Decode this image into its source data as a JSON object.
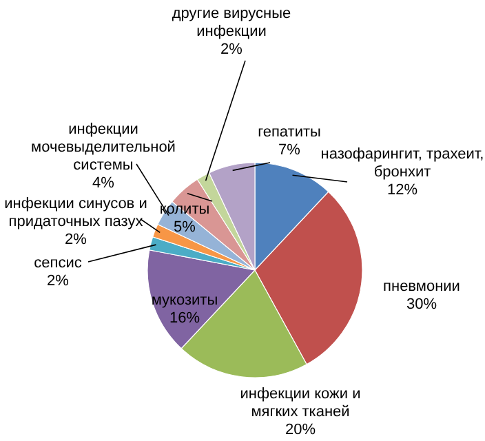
{
  "chart_data": {
    "type": "pie",
    "categories": [
      "назофарингит, трахеит, бронхит",
      "пневмонии",
      "инфекции кожи и мягких тканей",
      "мукозиты",
      "сепсис",
      "инфекции синусов и придаточных пазух",
      "инфекции мочевыделительной системы",
      "колиты",
      "другие вирусные инфекции",
      "гепатиты"
    ],
    "values": [
      12,
      30,
      20,
      16,
      2,
      2,
      4,
      5,
      2,
      7
    ],
    "value_labels": [
      "12%",
      "30%",
      "20%",
      "16%",
      "2%",
      "2%",
      "4%",
      "5%",
      "2%",
      "7%"
    ],
    "colors": [
      "#4f81bd",
      "#c0504d",
      "#9bbb59",
      "#8064a2",
      "#4bacc6",
      "#f79646",
      "#95b3d7",
      "#d99694",
      "#c3d69b",
      "#b3a2c7"
    ]
  }
}
